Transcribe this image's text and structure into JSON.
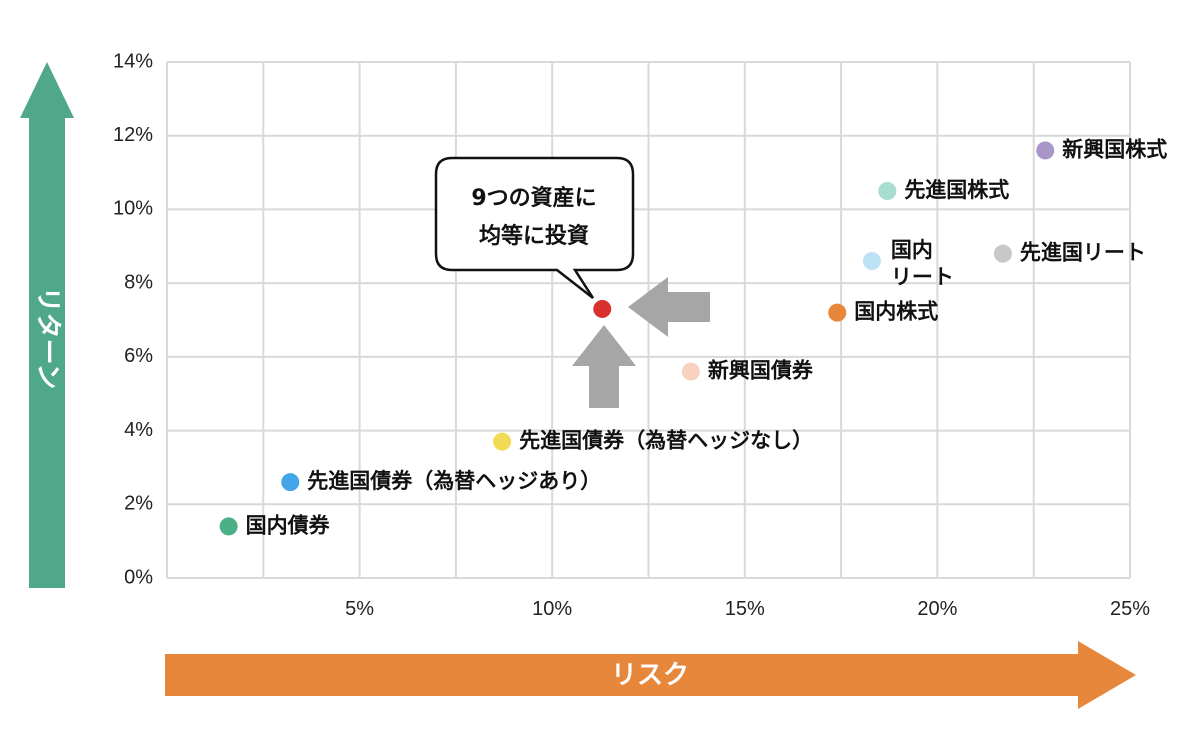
{
  "colors": {
    "grid": "#d9d9d9",
    "y_arrow": "#4fa88a",
    "x_arrow": "#e6873c",
    "pointer_arrow": "#a6a6a6"
  },
  "chart_data": {
    "type": "scatter",
    "title": "",
    "xlabel": "リスク",
    "ylabel": "リターン",
    "xlim": [
      0,
      25
    ],
    "ylim": [
      0,
      14
    ],
    "xticks": [
      5,
      10,
      15,
      20,
      25
    ],
    "yticks": [
      0,
      2,
      4,
      6,
      8,
      10,
      12,
      14
    ],
    "tick_suffix": "%",
    "grid": true,
    "points": [
      {
        "label": "国内債券",
        "x": 1.6,
        "y": 1.4,
        "color": "#4caf86",
        "label_side": "right"
      },
      {
        "label": "先進国債券（為替ヘッジあり）",
        "x": 3.2,
        "y": 2.6,
        "color": "#42a5e8",
        "label_side": "right"
      },
      {
        "label": "先進国債券（為替ヘッジなし）",
        "x": 8.7,
        "y": 3.7,
        "color": "#f3dc55",
        "label_side": "right"
      },
      {
        "label": "新興国債券",
        "x": 13.6,
        "y": 5.6,
        "color": "#f8d2bf",
        "label_side": "right"
      },
      {
        "label": "国内株式",
        "x": 17.4,
        "y": 7.2,
        "color": "#e6873c",
        "label_side": "right"
      },
      {
        "label": "国内\nリート",
        "x": 18.3,
        "y": 8.6,
        "color": "#bde1f5",
        "label_side": "upper-right"
      },
      {
        "label": "先進国リート",
        "x": 21.7,
        "y": 8.8,
        "color": "#c8c8c8",
        "label_side": "right"
      },
      {
        "label": "先進国株式",
        "x": 18.7,
        "y": 10.5,
        "color": "#a8ddd0",
        "label_side": "right"
      },
      {
        "label": "新興国株式",
        "x": 22.8,
        "y": 11.6,
        "color": "#a996c9",
        "label_side": "right"
      },
      {
        "label": "",
        "x": 11.3,
        "y": 7.3,
        "color": "#d8322e",
        "label_side": "none",
        "highlight": true
      }
    ],
    "annotations": [
      {
        "text_lines": [
          "9つの資産に",
          "均等に投資"
        ],
        "target": "highlight"
      }
    ]
  }
}
